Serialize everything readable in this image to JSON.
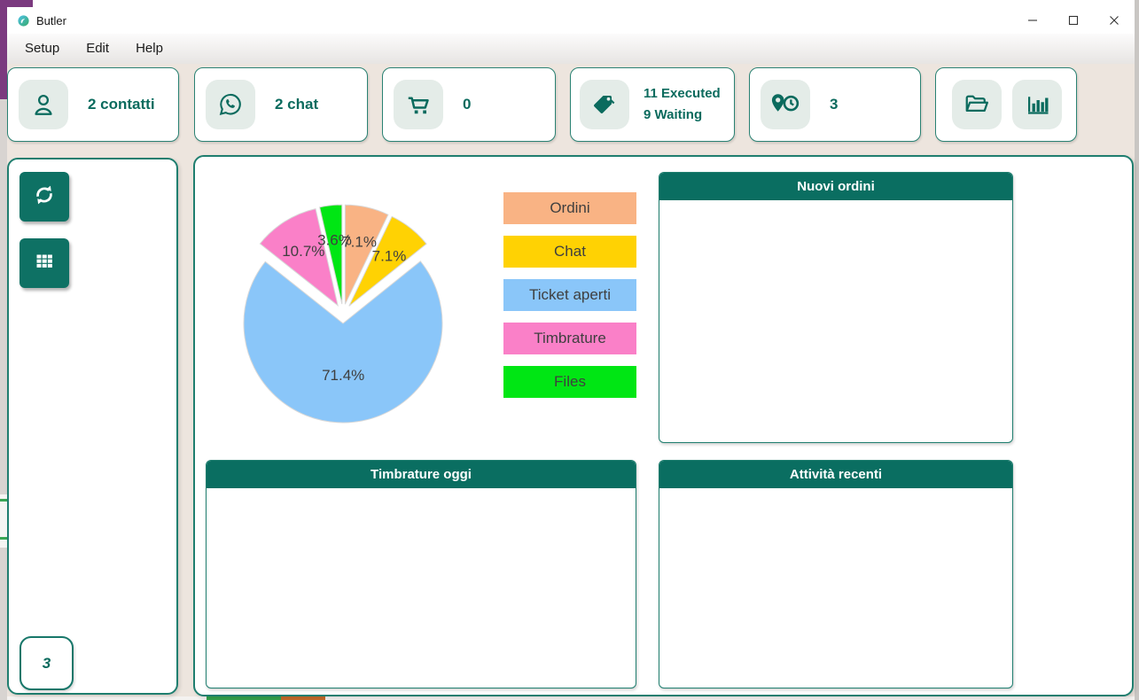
{
  "window": {
    "title": "Butler",
    "controls": [
      "minimize",
      "maximize",
      "close"
    ]
  },
  "menu": {
    "items": [
      "Setup",
      "Edit",
      "Help"
    ]
  },
  "toolbar": {
    "cards": [
      {
        "icon": "user-icon",
        "label": "2 contatti"
      },
      {
        "icon": "whatsapp-icon",
        "label": "2 chat"
      },
      {
        "icon": "cart-icon",
        "label": "0"
      },
      {
        "icon": "tags-icon",
        "line1": "11 Executed",
        "line2": "9 Waiting"
      },
      {
        "icon": "location-clock-icon",
        "label": "3"
      },
      {
        "icons": [
          "folder-open-icon",
          "bar-chart-icon"
        ]
      }
    ]
  },
  "sidebar": {
    "buttons": [
      {
        "icon": "refresh-icon"
      },
      {
        "icon": "grid-icon"
      }
    ],
    "counter": "3"
  },
  "main": {
    "panels": {
      "new_orders": "Nuovi ordini",
      "timecards_today": "Timbrature oggi",
      "recent_activities": "Attività recenti"
    }
  },
  "chart_data": {
    "type": "pie",
    "slices": [
      {
        "label": "Ordini",
        "value": 7.1,
        "percent_label": "7.1%",
        "color": "#F9B384"
      },
      {
        "label": "Chat",
        "value": 7.1,
        "percent_label": "7.1%",
        "color": "#FFD203"
      },
      {
        "label": "Ticket aperti",
        "value": 71.4,
        "percent_label": "71.4%",
        "color": "#8AC6F9"
      },
      {
        "label": "Timbrature",
        "value": 10.7,
        "percent_label": "10.7%",
        "color": "#FA80C8"
      },
      {
        "label": "Files",
        "value": 3.6,
        "percent_label": "3.6%",
        "color": "#00E614"
      }
    ],
    "start_angle_deg": 0,
    "clockwise": true,
    "exploded": true,
    "legend_position": "right"
  },
  "colors": {
    "teal_dark": "#0A6E61",
    "teal_border": "#1F7E6F",
    "teal_text": "#0B6B5E",
    "toolbar_bg": "#EDE5DE",
    "icon_box_bg": "#E4ECE8",
    "chart_label_text": "#3F3F3F"
  }
}
